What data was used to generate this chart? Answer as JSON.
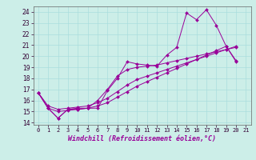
{
  "xlabel": "Windchill (Refroidissement éolien,°C)",
  "background_color": "#cceee8",
  "grid_color": "#aadddd",
  "line_color": "#990099",
  "xlim": [
    -0.5,
    21.5
  ],
  "ylim": [
    13.8,
    24.5
  ],
  "xticks": [
    0,
    1,
    2,
    3,
    4,
    5,
    6,
    7,
    8,
    9,
    10,
    11,
    12,
    13,
    14,
    15,
    16,
    17,
    18,
    19,
    20,
    21
  ],
  "yticks": [
    14,
    15,
    16,
    17,
    18,
    19,
    20,
    21,
    22,
    23,
    24
  ],
  "series": [
    [
      16.7,
      15.3,
      14.4,
      15.2,
      15.2,
      15.3,
      15.3,
      16.9,
      18.0,
      19.5,
      19.3,
      19.2,
      19.1,
      20.1,
      20.8,
      23.9,
      23.3,
      24.2,
      22.8,
      20.9,
      19.6
    ],
    [
      16.7,
      15.3,
      14.4,
      15.2,
      15.3,
      15.3,
      16.0,
      17.0,
      18.2,
      18.8,
      19.0,
      19.1,
      19.2,
      19.4,
      19.6,
      19.8,
      20.0,
      20.2,
      20.4,
      20.6,
      20.8
    ],
    [
      16.7,
      15.5,
      15.2,
      15.3,
      15.4,
      15.5,
      15.8,
      16.2,
      16.8,
      17.4,
      17.9,
      18.2,
      18.5,
      18.8,
      19.1,
      19.4,
      19.7,
      20.0,
      20.3,
      20.6,
      20.9
    ],
    [
      16.7,
      15.3,
      15.0,
      15.1,
      15.2,
      15.3,
      15.5,
      15.8,
      16.3,
      16.8,
      17.3,
      17.7,
      18.1,
      18.5,
      18.9,
      19.3,
      19.7,
      20.1,
      20.5,
      20.9,
      19.5
    ]
  ]
}
